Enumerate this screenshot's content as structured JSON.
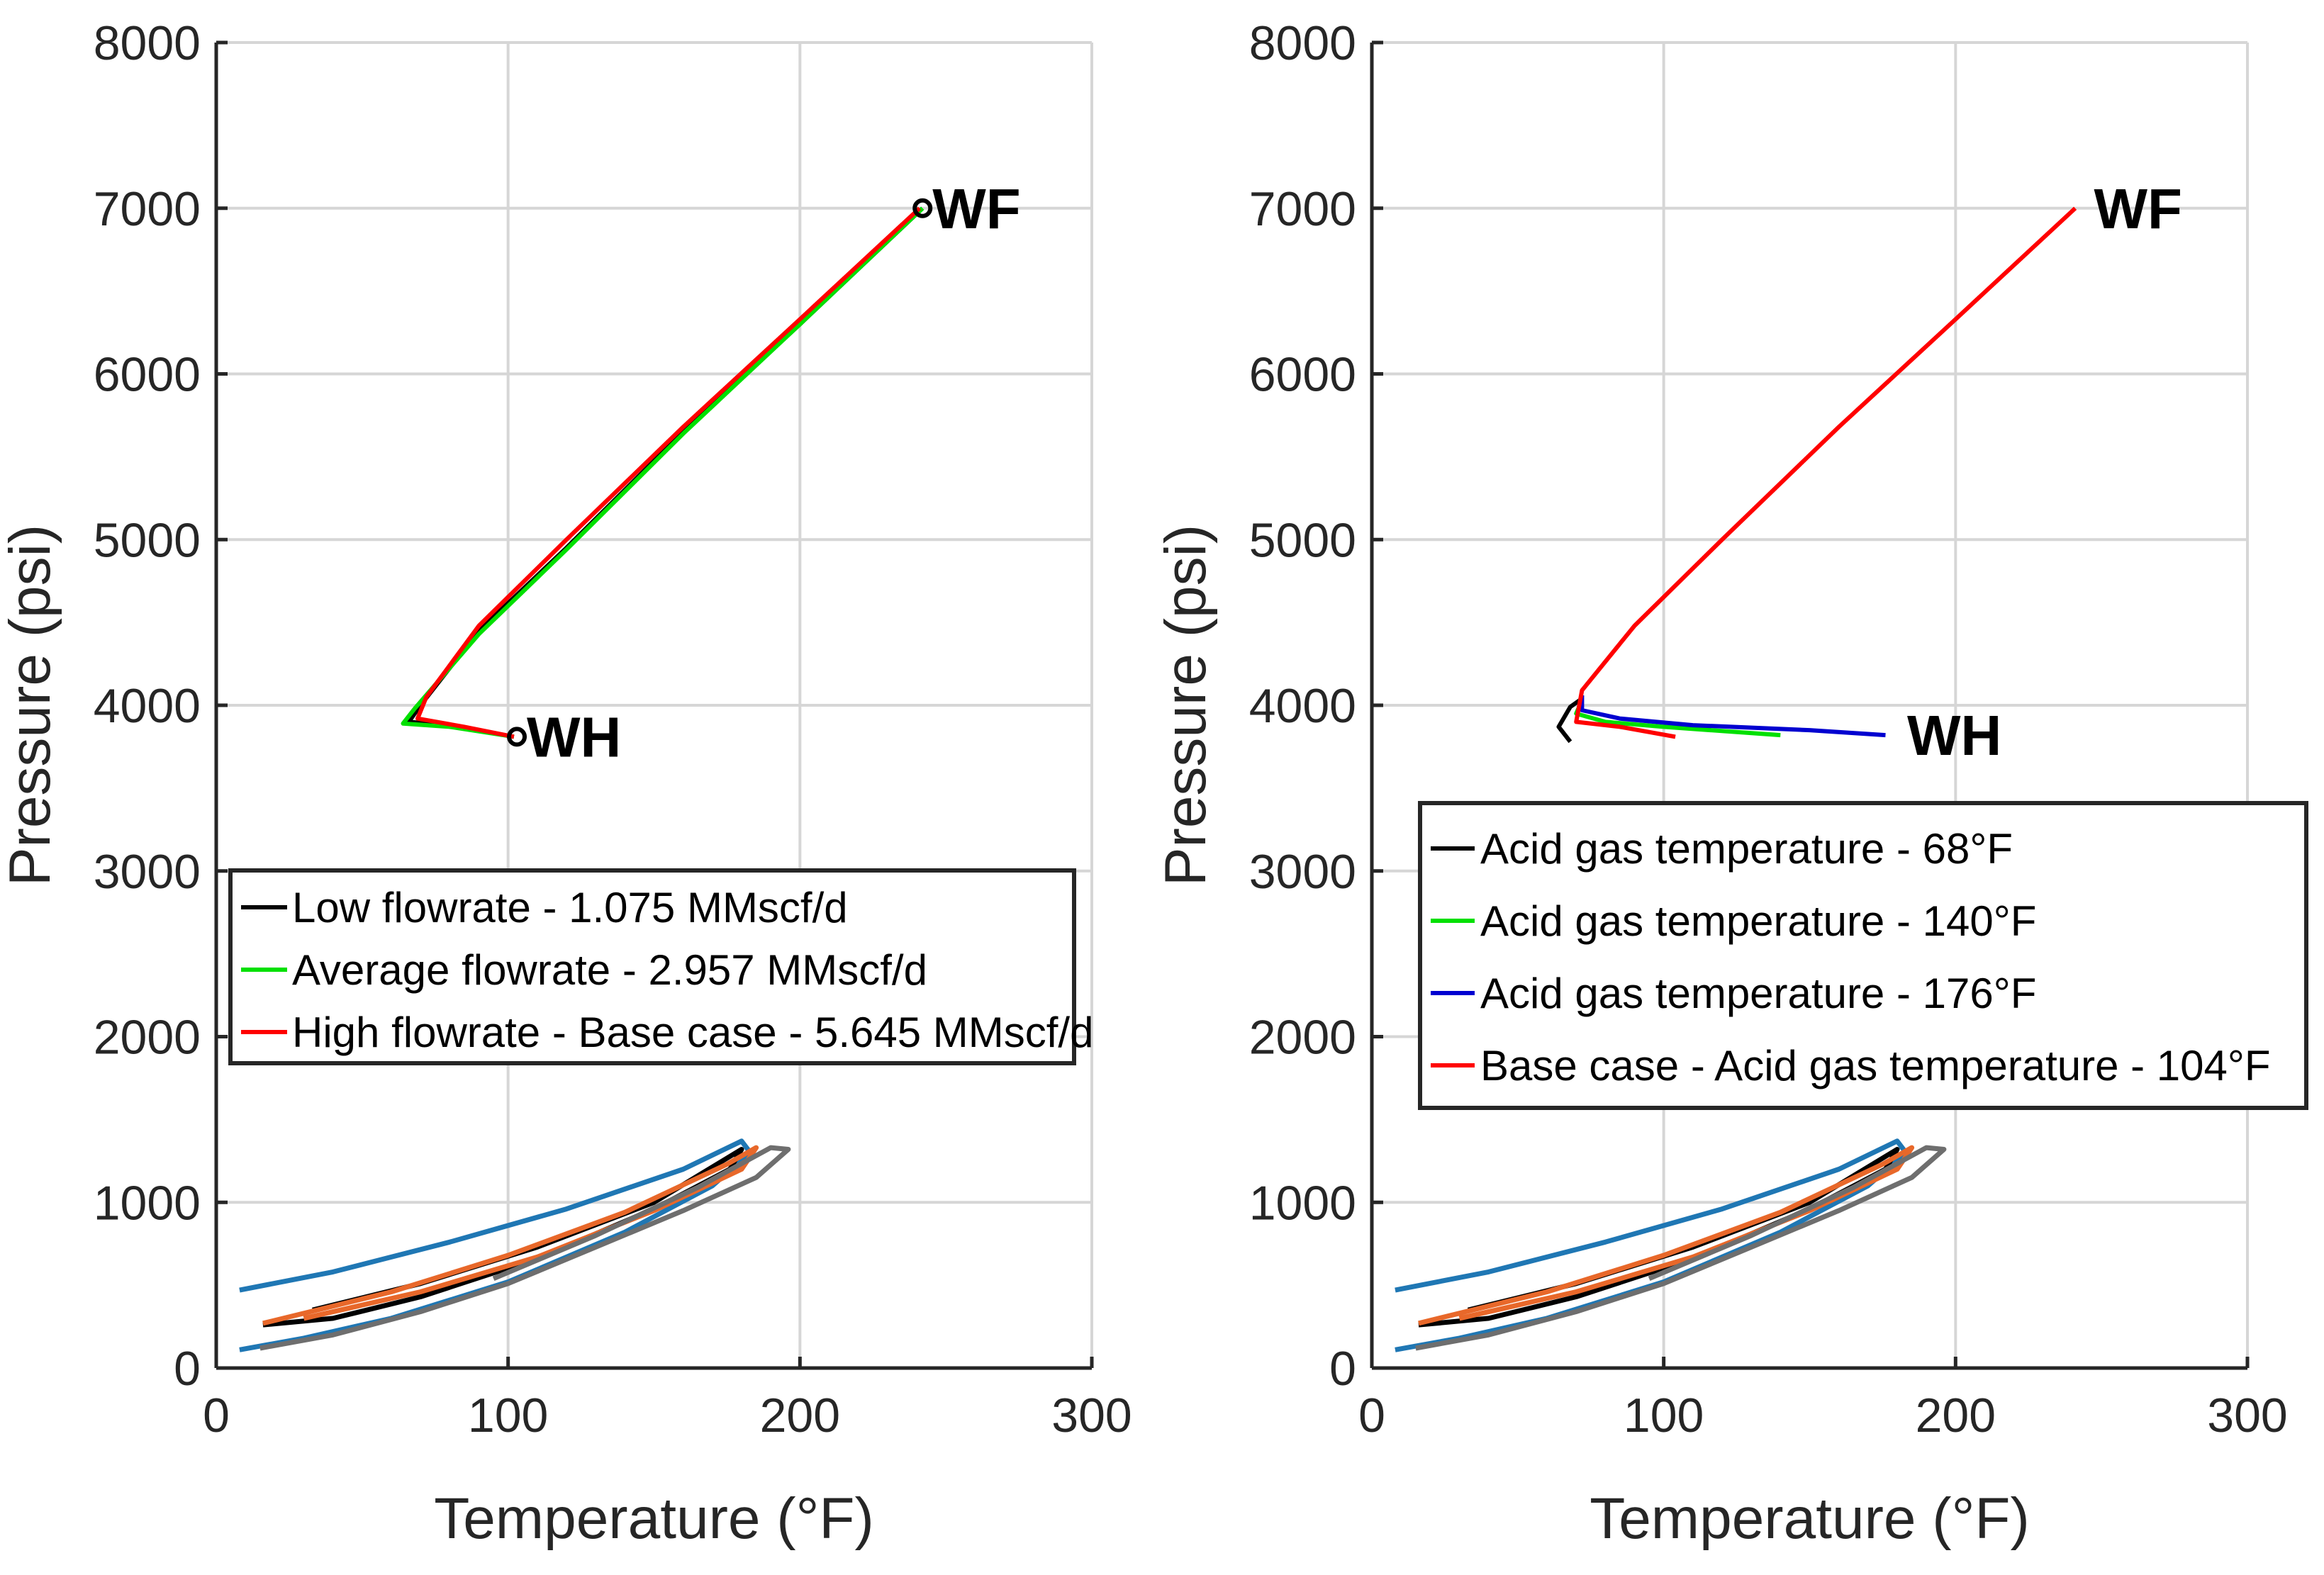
{
  "figure": {
    "envelope_style": {
      "note": "phase envelope curves shared by both panels"
    },
    "colors": {
      "black": "#000000",
      "green": "#00e000",
      "red": "#ff0000",
      "blue": "#0000d0",
      "env_blue": "#1f77b4",
      "env_orange": "#e8682a",
      "env_black": "#000000",
      "env_gray": "#6e6e6e",
      "grid": "#d6d6d6"
    }
  },
  "chart_data": [
    {
      "type": "line",
      "xlabel": "Temperature (°F)",
      "ylabel": "Pressure (psi)",
      "xlim": [
        0,
        300
      ],
      "ylim": [
        0,
        8000
      ],
      "xticks": [
        "0",
        "100",
        "200",
        "300"
      ],
      "yticks": [
        "0",
        "1000",
        "2000",
        "3000",
        "4000",
        "5000",
        "6000",
        "7000",
        "8000"
      ],
      "grid": true,
      "legend_position": "middle-left",
      "series": [
        {
          "name": "Low flowrate - 1.075 MMscf/d",
          "color": "black",
          "points": [
            [
              242,
              7000
            ],
            [
              200,
              6300
            ],
            [
              160,
              5650
            ],
            [
              120,
              4950
            ],
            [
              90,
              4450
            ],
            [
              70,
              4000
            ],
            [
              66,
              3900
            ],
            [
              80,
              3880
            ],
            [
              102,
              3810
            ]
          ]
        },
        {
          "name": "Average flowrate - 2.957 MMscf/d",
          "color": "green",
          "points": [
            [
              242,
              7000
            ],
            [
              200,
              6300
            ],
            [
              160,
              5640
            ],
            [
              120,
              4940
            ],
            [
              90,
              4430
            ],
            [
              68,
              3980
            ],
            [
              64,
              3890
            ],
            [
              80,
              3870
            ],
            [
              102,
              3810
            ]
          ]
        },
        {
          "name": "High flowrate - Base case - 5.645 MMscf/d",
          "color": "red",
          "points": [
            [
              241,
              7000
            ],
            [
              200,
              6330
            ],
            [
              160,
              5680
            ],
            [
              120,
              5000
            ],
            [
              90,
              4480
            ],
            [
              72,
              4050
            ],
            [
              69,
              3920
            ],
            [
              85,
              3870
            ],
            [
              102,
              3810
            ]
          ]
        }
      ],
      "markers": [
        {
          "label": "WF",
          "x": 242,
          "y": 7000
        },
        {
          "label": "WH",
          "x": 103,
          "y": 3810
        }
      ],
      "envelopes": [
        {
          "color": "env_blue",
          "points": [
            [
              8,
              470
            ],
            [
              40,
              580
            ],
            [
              80,
              760
            ],
            [
              120,
              960
            ],
            [
              160,
              1200
            ],
            [
              180,
              1370
            ],
            [
              183,
              1300
            ],
            [
              170,
              1100
            ],
            [
              140,
              820
            ],
            [
              100,
              520
            ],
            [
              60,
              300
            ],
            [
              30,
              180
            ],
            [
              8,
              110
            ]
          ]
        },
        {
          "color": "env_black",
          "points": [
            [
              33,
              350
            ],
            [
              70,
              510
            ],
            [
              110,
              730
            ],
            [
              150,
              1000
            ],
            [
              180,
              1320
            ],
            [
              176,
              1200
            ],
            [
              150,
              960
            ],
            [
              110,
              660
            ],
            [
              70,
              430
            ],
            [
              40,
              300
            ],
            [
              16,
              260
            ]
          ]
        },
        {
          "color": "env_orange",
          "points": [
            [
              16,
              270
            ],
            [
              60,
              460
            ],
            [
              100,
              680
            ],
            [
              140,
              940
            ],
            [
              175,
              1230
            ],
            [
              185,
              1330
            ],
            [
              180,
              1200
            ],
            [
              150,
              950
            ],
            [
              110,
              670
            ],
            [
              70,
              460
            ],
            [
              30,
              300
            ]
          ]
        },
        {
          "color": "env_gray",
          "points": [
            [
              95,
              540
            ],
            [
              130,
              800
            ],
            [
              165,
              1090
            ],
            [
              190,
              1330
            ],
            [
              196,
              1320
            ],
            [
              185,
              1150
            ],
            [
              160,
              950
            ],
            [
              130,
              730
            ],
            [
              100,
              510
            ],
            [
              70,
              340
            ],
            [
              40,
              200
            ],
            [
              15,
              120
            ]
          ]
        }
      ]
    },
    {
      "type": "line",
      "xlabel": "Temperature (°F)",
      "ylabel": "Pressure (psi)",
      "xlim": [
        0,
        300
      ],
      "ylim": [
        0,
        8000
      ],
      "xticks": [
        "0",
        "100",
        "200",
        "300"
      ],
      "yticks": [
        "0",
        "1000",
        "2000",
        "3000",
        "4000",
        "5000",
        "6000",
        "7000",
        "8000"
      ],
      "grid": true,
      "legend_position": "middle-right",
      "series": [
        {
          "name": "Acid gas temperature - 68°F",
          "color": "black",
          "points": [
            [
              68,
              3780
            ],
            [
              64,
              3870
            ],
            [
              68,
              3990
            ],
            [
              72,
              4040
            ]
          ]
        },
        {
          "name": "Acid gas temperature - 140°F",
          "color": "green",
          "points": [
            [
              72,
              4030
            ],
            [
              70,
              3950
            ],
            [
              80,
              3900
            ],
            [
              100,
              3870
            ],
            [
              140,
              3820
            ]
          ]
        },
        {
          "name": "Acid gas temperature - 176°F",
          "color": "blue",
          "points": [
            [
              72,
              4060
            ],
            [
              72,
              3970
            ],
            [
              85,
              3920
            ],
            [
              110,
              3880
            ],
            [
              150,
              3850
            ],
            [
              176,
              3820
            ]
          ]
        },
        {
          "name": "Base case - Acid gas temperature - 104°F",
          "color": "red",
          "points": [
            [
              241,
              7000
            ],
            [
              200,
              6330
            ],
            [
              160,
              5680
            ],
            [
              120,
              5000
            ],
            [
              90,
              4480
            ],
            [
              72,
              4090
            ],
            [
              70,
              3900
            ],
            [
              85,
              3870
            ],
            [
              104,
              3810
            ]
          ]
        }
      ],
      "markers": [
        {
          "label": "WF",
          "x": 244,
          "y": 7000
        },
        {
          "label": "WH",
          "x": 180,
          "y": 3820
        }
      ],
      "envelopes": [
        {
          "color": "env_blue",
          "points": [
            [
              8,
              470
            ],
            [
              40,
              580
            ],
            [
              80,
              760
            ],
            [
              120,
              960
            ],
            [
              160,
              1200
            ],
            [
              180,
              1370
            ],
            [
              183,
              1300
            ],
            [
              170,
              1100
            ],
            [
              140,
              820
            ],
            [
              100,
              520
            ],
            [
              60,
              300
            ],
            [
              30,
              180
            ],
            [
              8,
              110
            ]
          ]
        },
        {
          "color": "env_black",
          "points": [
            [
              33,
              350
            ],
            [
              70,
              510
            ],
            [
              110,
              730
            ],
            [
              150,
              1000
            ],
            [
              180,
              1320
            ],
            [
              176,
              1200
            ],
            [
              150,
              960
            ],
            [
              110,
              660
            ],
            [
              70,
              430
            ],
            [
              40,
              300
            ],
            [
              16,
              260
            ]
          ]
        },
        {
          "color": "env_orange",
          "points": [
            [
              16,
              270
            ],
            [
              60,
              460
            ],
            [
              100,
              680
            ],
            [
              140,
              940
            ],
            [
              175,
              1230
            ],
            [
              185,
              1330
            ],
            [
              180,
              1200
            ],
            [
              150,
              950
            ],
            [
              110,
              670
            ],
            [
              70,
              460
            ],
            [
              30,
              300
            ]
          ]
        },
        {
          "color": "env_gray",
          "points": [
            [
              95,
              540
            ],
            [
              130,
              800
            ],
            [
              165,
              1090
            ],
            [
              190,
              1330
            ],
            [
              196,
              1320
            ],
            [
              185,
              1150
            ],
            [
              160,
              950
            ],
            [
              130,
              730
            ],
            [
              100,
              510
            ],
            [
              70,
              340
            ],
            [
              40,
              200
            ],
            [
              15,
              120
            ]
          ]
        }
      ]
    }
  ]
}
